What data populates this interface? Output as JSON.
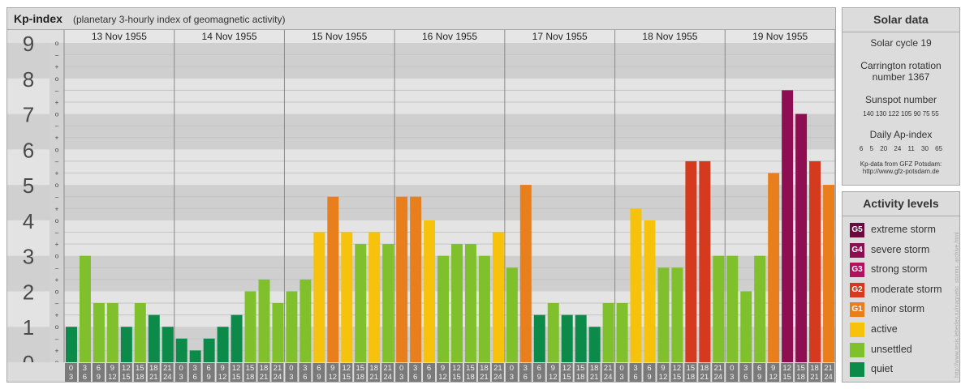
{
  "header": {
    "title": "Kp-index",
    "subtitle": "(planetary 3-hourly index of geomagnetic activity)"
  },
  "chart_data": {
    "type": "bar",
    "title": "Kp-index",
    "subtitle": "(planetary 3-hourly index of geomagnetic activity)",
    "ylim": [
      0,
      9
    ],
    "y_ticks": [
      "0",
      "1",
      "2",
      "3",
      "4",
      "5",
      "6",
      "7",
      "8",
      "9"
    ],
    "minor_tick_labels": [
      "o",
      "+",
      "–"
    ],
    "x_labels": [
      [
        "0",
        "3"
      ],
      [
        "3",
        "6"
      ],
      [
        "6",
        "9"
      ],
      [
        "9",
        "12"
      ],
      [
        "12",
        "15"
      ],
      [
        "15",
        "18"
      ],
      [
        "18",
        "21"
      ],
      [
        "21",
        "24"
      ]
    ],
    "days": [
      {
        "date": "13 Nov 1955",
        "values": [
          1.0,
          3.0,
          1.667,
          1.667,
          1.0,
          1.667,
          1.333,
          1.0
        ]
      },
      {
        "date": "14 Nov 1955",
        "values": [
          0.667,
          0.333,
          0.667,
          1.0,
          1.333,
          2.0,
          2.333,
          1.667
        ]
      },
      {
        "date": "15 Nov 1955",
        "values": [
          2.0,
          2.333,
          3.667,
          4.667,
          3.667,
          3.333,
          3.667,
          3.333
        ]
      },
      {
        "date": "16 Nov 1955",
        "values": [
          4.667,
          4.667,
          4.0,
          3.0,
          3.333,
          3.333,
          3.0,
          3.667
        ]
      },
      {
        "date": "17 Nov 1955",
        "values": [
          2.667,
          5.0,
          1.333,
          1.667,
          1.333,
          1.333,
          1.0,
          1.667
        ]
      },
      {
        "date": "18 Nov 1955",
        "values": [
          1.667,
          4.333,
          4.0,
          2.667,
          2.667,
          5.667,
          5.667,
          3.0
        ]
      },
      {
        "date": "19 Nov 1955",
        "values": [
          3.0,
          2.0,
          3.0,
          5.333,
          7.667,
          7.0,
          5.667,
          5.0
        ]
      }
    ],
    "grid": true
  },
  "solar": {
    "title": "Solar data",
    "cycle": "Solar cycle 19",
    "carrington_line1": "Carrington rotation",
    "carrington_line2": "number 1367",
    "sunspot_title": "Sunspot number",
    "sunspot_values": "140 130 122 105 90 75 55",
    "ap_title": "Daily Ap-index",
    "ap_values": "6 5 20 24 11 30 65",
    "credit_line1": "Kp-data from GFZ Potsdam:",
    "credit_line2": "http://www.gfz-potsdam.de"
  },
  "activity": {
    "title": "Activity levels",
    "levels": [
      {
        "code": "G5",
        "label": "extreme storm",
        "color": "#6b0a3e"
      },
      {
        "code": "G4",
        "label": "severe storm",
        "color": "#8e0e52"
      },
      {
        "code": "G3",
        "label": "strong storm",
        "color": "#b0145e"
      },
      {
        "code": "G2",
        "label": "moderate storm",
        "color": "#d63a1e"
      },
      {
        "code": "G1",
        "label": "minor storm",
        "color": "#e97f1c"
      },
      {
        "code": "",
        "label": "active",
        "color": "#f6c20c"
      },
      {
        "code": "",
        "label": "unsettled",
        "color": "#7fc02c"
      },
      {
        "code": "",
        "label": "quiet",
        "color": "#0b8a4a"
      }
    ]
  },
  "watermark": "http://www.tesis.lebedev.ru/magnetic_storms_archive.html"
}
